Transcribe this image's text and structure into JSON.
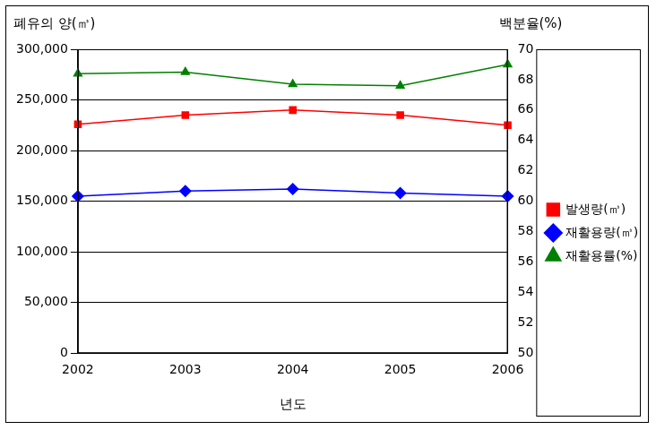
{
  "chart_data": {
    "type": "line",
    "x_label": "년도",
    "y_label": "폐유의 양(㎥)",
    "y2_label": "백분율(%)",
    "categories": [
      "2002",
      "2003",
      "2004",
      "2005",
      "2006"
    ],
    "series": [
      {
        "name": "발생량(㎥)",
        "color": "#ff0000",
        "marker": "square",
        "values": [
          226000,
          235000,
          240000,
          235000,
          225000
        ]
      },
      {
        "name": "재활용량(㎥)",
        "color": "#0000ff",
        "marker": "diamond",
        "values": [
          155000,
          160000,
          162000,
          158000,
          155000
        ]
      },
      {
        "name": "재활용률(%)",
        "color": "#008000",
        "marker": "triangle",
        "axis": "y2",
        "values": [
          68.4,
          68.5,
          67.7,
          67.6,
          69.0
        ]
      }
    ],
    "ylim": [
      0,
      300000
    ],
    "yticks": [
      0,
      {
        "value": 50000,
        "label": "50,000"
      },
      {
        "value": 100000,
        "label": "100,000"
      },
      {
        "value": 150000,
        "label": "150,000"
      },
      {
        "value": 200000,
        "label": "200,000"
      },
      {
        "value": 250000,
        "label": "250,000"
      },
      {
        "value": 300000,
        "label": "300,000"
      }
    ],
    "y2lim": [
      50,
      70
    ],
    "y2ticks": [
      50,
      52,
      54,
      56,
      58,
      60,
      62,
      64,
      66,
      68,
      70
    ],
    "grid": true,
    "legend": "right"
  }
}
